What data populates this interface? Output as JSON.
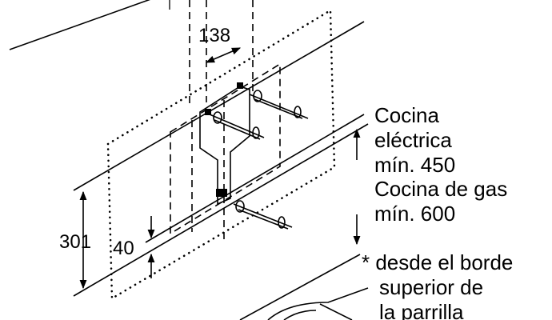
{
  "dimensions": {
    "width_138": "138",
    "height_301": "301",
    "height_40": "40"
  },
  "notes": {
    "electric": [
      "Cocina",
      "eléctrica",
      "mín. 450"
    ],
    "gas": [
      "Cocina de gas",
      "mín. 600"
    ],
    "footnote": [
      "* desde el borde",
      "superior de",
      "la parrilla"
    ]
  }
}
